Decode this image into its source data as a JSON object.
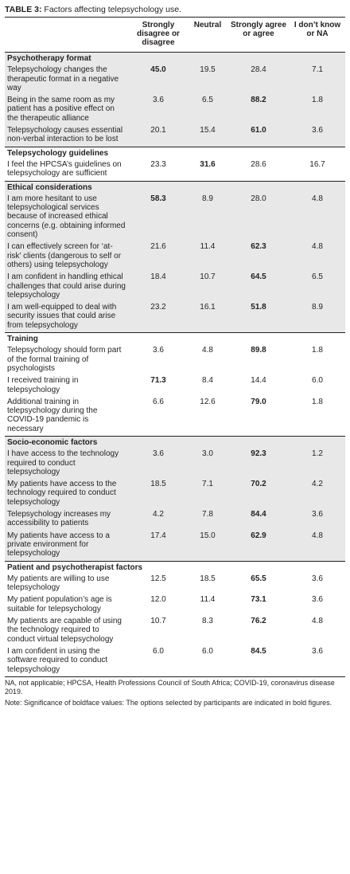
{
  "caption": {
    "label": "TABLE 3:",
    "text": " Factors affecting telepsychology use."
  },
  "columns": [
    "",
    "Strongly disagree or disagree",
    "Neutral",
    "Strongly agree or agree",
    "I don’t know or NA"
  ],
  "sections": [
    {
      "title": "Psychotherapy format",
      "shaded": true,
      "rows": [
        {
          "label": "Telepsychology changes the therapeutic format in a negative way",
          "values": [
            "45.0",
            "19.5",
            "28.4",
            "7.1"
          ],
          "bold": 0
        },
        {
          "label": "Being in the same room as my patient has a positive effect on the therapeutic alliance",
          "values": [
            "3.6",
            "6.5",
            "88.2",
            "1.8"
          ],
          "bold": 2
        },
        {
          "label": "Telepsychology causes essential non-verbal interaction to be lost",
          "values": [
            "20.1",
            "15.4",
            "61.0",
            "3.6"
          ],
          "bold": 2
        }
      ]
    },
    {
      "title": "Telepsychology guidelines",
      "shaded": false,
      "rows": [
        {
          "label": "I feel the HPCSA’s guidelines on telepsychology are sufficient",
          "values": [
            "23.3",
            "31.6",
            "28.6",
            "16.7"
          ],
          "bold": 1
        }
      ]
    },
    {
      "title": "Ethical considerations",
      "shaded": true,
      "rows": [
        {
          "label": "I am more hesitant to use telepsychological services because of increased ethical concerns (e.g. obtaining informed consent)",
          "values": [
            "58.3",
            "8.9",
            "28.0",
            "4.8"
          ],
          "bold": 0
        },
        {
          "label": "I can effectively screen for ‘at-risk’ clients (dangerous to self or others) using telepsychology",
          "values": [
            "21.6",
            "11.4",
            "62.3",
            "4.8"
          ],
          "bold": 2
        },
        {
          "label": "I am confident in handling ethical challenges that could arise during telepsychology",
          "values": [
            "18.4",
            "10.7",
            "64.5",
            "6.5"
          ],
          "bold": 2
        },
        {
          "label": "I am well-equipped to deal with security issues that could arise from telepsychology",
          "values": [
            "23.2",
            "16.1",
            "51.8",
            "8.9"
          ],
          "bold": 2
        }
      ]
    },
    {
      "title": "Training",
      "shaded": false,
      "rows": [
        {
          "label": "Telepsychology should form part of the formal training of psychologists",
          "values": [
            "3.6",
            "4.8",
            "89.8",
            "1.8"
          ],
          "bold": 2
        },
        {
          "label": "I received training in telepsychology",
          "values": [
            "71.3",
            "8.4",
            "14.4",
            "6.0"
          ],
          "bold": 0
        },
        {
          "label": "Additional training in telepsychology during the COVID-19 pandemic is necessary",
          "values": [
            "6.6",
            "12.6",
            "79.0",
            "1.8"
          ],
          "bold": 2
        }
      ]
    },
    {
      "title": "Socio-economic factors",
      "shaded": true,
      "rows": [
        {
          "label": "I have access to the technology required to conduct telepsychology",
          "values": [
            "3.6",
            "3.0",
            "92.3",
            "1.2"
          ],
          "bold": 2
        },
        {
          "label": "My patients have access to the technology required to conduct telepsychology",
          "values": [
            "18.5",
            "7.1",
            "70.2",
            "4.2"
          ],
          "bold": 2
        },
        {
          "label": "Telepsychology increases my accessibility to patients",
          "values": [
            "4.2",
            "7.8",
            "84.4",
            "3.6"
          ],
          "bold": 2
        },
        {
          "label": "My patients have access to a private environment for telepsychology",
          "values": [
            "17.4",
            "15.0",
            "62.9",
            "4.8"
          ],
          "bold": 2
        }
      ]
    },
    {
      "title": "Patient and psychotherapist factors",
      "shaded": false,
      "rows": [
        {
          "label": "My patients are willing to use telepsychology",
          "values": [
            "12.5",
            "18.5",
            "65.5",
            "3.6"
          ],
          "bold": 2
        },
        {
          "label": "My patient population’s age is suitable for telepsychology",
          "values": [
            "12.0",
            "11.4",
            "73.1",
            "3.6"
          ],
          "bold": 2
        },
        {
          "label": "My patients are capable of using the technology required to conduct virtual telepsychology",
          "values": [
            "10.7",
            "8.3",
            "76.2",
            "4.8"
          ],
          "bold": 2
        },
        {
          "label": "I am confident in using the software required to conduct telepsychology",
          "values": [
            "6.0",
            "6.0",
            "84.5",
            "3.6"
          ],
          "bold": 2
        }
      ]
    }
  ],
  "notes": [
    "NA, not applicable; HPCSA, Health Professions Council of South Africa; COVID-19, coronavirus disease 2019.",
    "Note: Significance of boldface values: The options selected by participants are indicated in bold figures."
  ]
}
